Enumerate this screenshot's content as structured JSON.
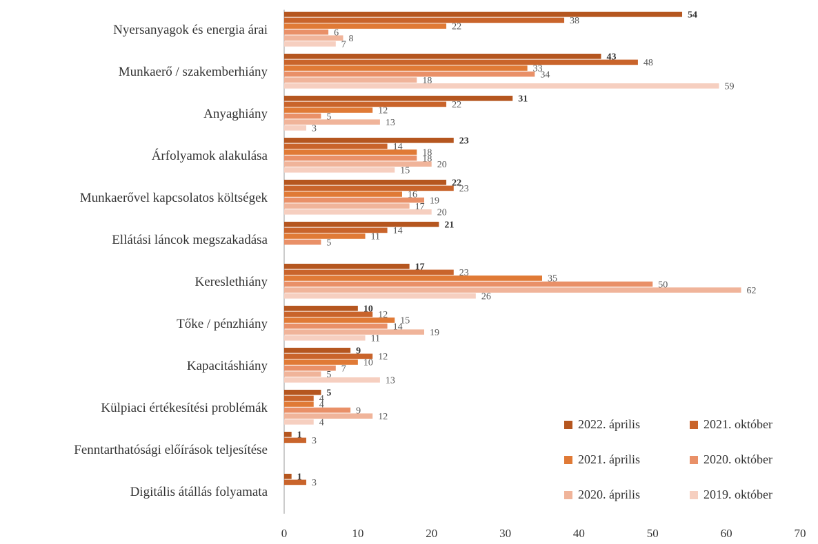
{
  "chart_data": {
    "type": "barh",
    "categories": [
      "Nyersanyagok és energia árai",
      "Munkaerő / szakemberhiány",
      "Anyaghiány",
      "Árfolyamok alakulása",
      "Munkaerővel kapcsolatos költségek",
      "Ellátási láncok megszakadása",
      "Kereslethiány",
      "Tőke / pénzhiány",
      "Kapacitáshiány",
      "Külpiaci értékesítési problémák",
      "Fenntarthatósági előírások teljesítése",
      "Digitális átállás folyamata"
    ],
    "series": [
      {
        "name": "2022. április",
        "color": "#b5561f",
        "values": [
          54,
          43,
          31,
          23,
          22,
          21,
          17,
          10,
          9,
          5,
          1,
          1
        ]
      },
      {
        "name": "2021. október",
        "color": "#c9642b",
        "values": [
          38,
          48,
          22,
          14,
          23,
          14,
          23,
          12,
          12,
          4,
          3,
          3
        ]
      },
      {
        "name": "2021. április",
        "color": "#e07a36",
        "values": [
          22,
          33,
          12,
          18,
          16,
          11,
          35,
          15,
          10,
          4,
          null,
          null
        ]
      },
      {
        "name": "2020. október",
        "color": "#e99068",
        "values": [
          6,
          34,
          5,
          18,
          19,
          5,
          50,
          14,
          7,
          9,
          null,
          null
        ]
      },
      {
        "name": "2020. április",
        "color": "#f0b49a",
        "values": [
          8,
          18,
          13,
          20,
          17,
          null,
          62,
          19,
          5,
          12,
          null,
          null
        ]
      },
      {
        "name": "2019. október",
        "color": "#f6cfc0",
        "values": [
          7,
          59,
          3,
          15,
          20,
          null,
          26,
          11,
          13,
          4,
          null,
          null
        ]
      }
    ],
    "xlim": [
      0,
      70
    ],
    "xticks": [
      0,
      10,
      20,
      30,
      40,
      50,
      60,
      70
    ],
    "legend": "lower right"
  }
}
